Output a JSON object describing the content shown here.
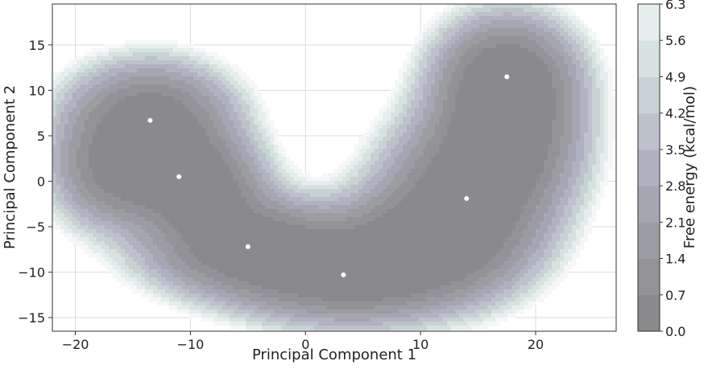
{
  "chart_data": {
    "type": "contour",
    "xlabel": "Principal Component 1",
    "ylabel": "Principal Component 2",
    "xlim": [
      -22,
      27
    ],
    "ylim": [
      -16.5,
      19.5
    ],
    "x_ticks": [
      -20,
      -10,
      0,
      10,
      20
    ],
    "y_ticks": [
      -15,
      -10,
      -5,
      0,
      5,
      10,
      15
    ],
    "grid": true,
    "colorbar": {
      "label": "Free energy (kcal/mol)",
      "levels": [
        0.0,
        0.7,
        1.4,
        2.1,
        2.8,
        3.5,
        4.2,
        4.9,
        5.6,
        6.3
      ],
      "level_labels": [
        "0.0",
        "0.7",
        "1.4",
        "2.1",
        "2.8",
        "3.5",
        "4.2",
        "4.9",
        "5.6",
        "6.3"
      ],
      "colors": [
        "#8a8a8d",
        "#939397",
        "#9c9ca3",
        "#a5a6b1",
        "#b0b2c0",
        "#bcc1cb",
        "#c8d2d4",
        "#d6e2e0",
        "#e5eeec",
        "#f5f7f7"
      ]
    },
    "minima": [
      {
        "x": -13.5,
        "y": 6.7
      },
      {
        "x": -11.0,
        "y": 0.5
      },
      {
        "x": -5.0,
        "y": -7.2
      },
      {
        "x": 3.3,
        "y": -10.3
      },
      {
        "x": 14.0,
        "y": -1.9
      },
      {
        "x": 17.5,
        "y": 11.5
      }
    ]
  }
}
